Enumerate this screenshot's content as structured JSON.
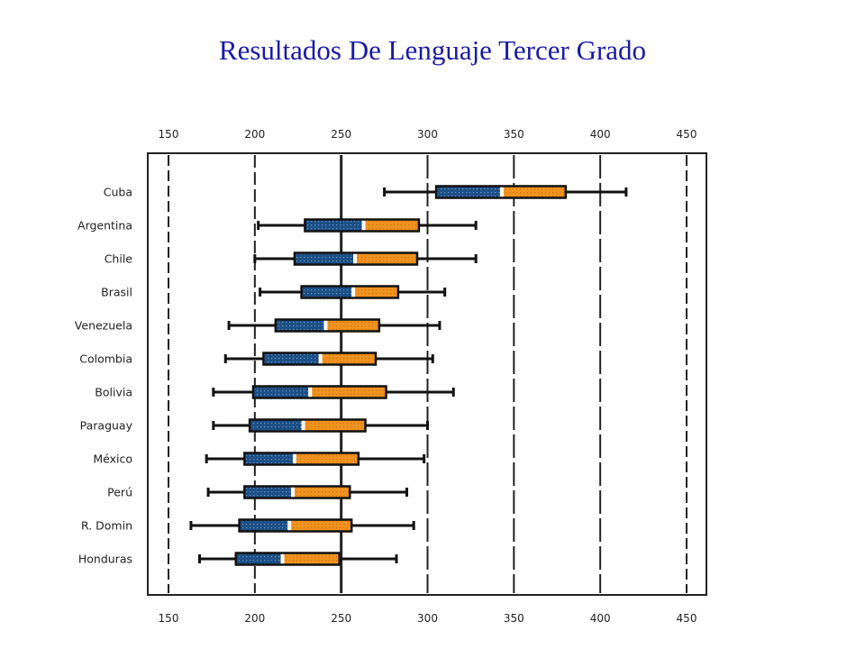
{
  "title": "Resultados De Lenguaje Tercer Grado",
  "chart_data": {
    "type": "boxplot",
    "title": "Resultados De Lenguaje Tercer Grado",
    "xlim": [
      150,
      450
    ],
    "ticks": [
      150,
      200,
      250,
      300,
      350,
      400,
      450
    ],
    "tick_labels": [
      "150",
      "200",
      "250",
      "300",
      "350",
      "400",
      "450"
    ],
    "reference_line": 250,
    "grid": true,
    "colors": {
      "lower": "#1c4f86",
      "upper": "#f0921e",
      "frame": "#222222"
    },
    "categories": [
      "Cuba",
      "Argentina",
      "Chile",
      "Brasil",
      "Venezuela",
      "Colombia",
      "Bolivia",
      "Paraguay",
      "México",
      "Perú",
      "R. Domin",
      "Honduras"
    ],
    "boxes": [
      {
        "name": "Cuba",
        "min": 275,
        "q1": 305,
        "median": 343,
        "q3": 380,
        "max": 415
      },
      {
        "name": "Argentina",
        "min": 202,
        "q1": 229,
        "median": 263,
        "q3": 295,
        "max": 328
      },
      {
        "name": "Chile",
        "min": 200,
        "q1": 223,
        "median": 258,
        "q3": 294,
        "max": 328
      },
      {
        "name": "Brasil",
        "min": 203,
        "q1": 227,
        "median": 257,
        "q3": 283,
        "max": 310
      },
      {
        "name": "Venezuela",
        "min": 185,
        "q1": 212,
        "median": 241,
        "q3": 272,
        "max": 307
      },
      {
        "name": "Colombia",
        "min": 183,
        "q1": 205,
        "median": 238,
        "q3": 270,
        "max": 303
      },
      {
        "name": "Bolivia",
        "min": 176,
        "q1": 199,
        "median": 232,
        "q3": 276,
        "max": 315
      },
      {
        "name": "Paraguay",
        "min": 176,
        "q1": 197,
        "median": 228,
        "q3": 264,
        "max": 300
      },
      {
        "name": "México",
        "min": 172,
        "q1": 194,
        "median": 223,
        "q3": 260,
        "max": 298
      },
      {
        "name": "Perú",
        "min": 173,
        "q1": 194,
        "median": 222,
        "q3": 255,
        "max": 288
      },
      {
        "name": "R. Domin",
        "min": 163,
        "q1": 191,
        "median": 220,
        "q3": 256,
        "max": 292
      },
      {
        "name": "Honduras",
        "min": 168,
        "q1": 189,
        "median": 216,
        "q3": 249,
        "max": 282
      }
    ]
  }
}
